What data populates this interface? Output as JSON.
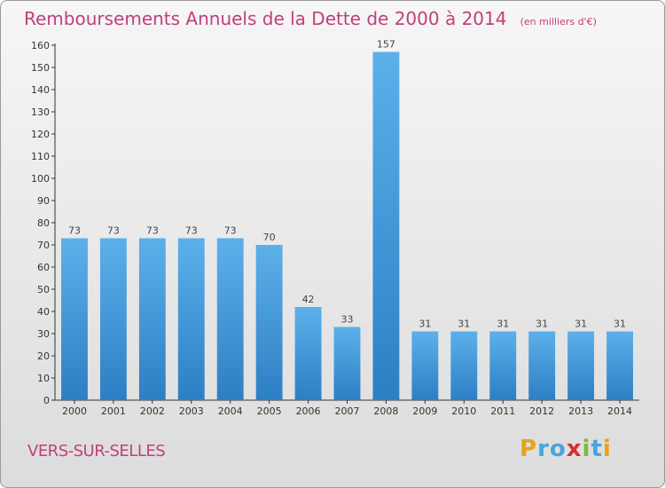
{
  "chart_data": {
    "type": "bar",
    "title": "Remboursements Annuels de la Dette de 2000 à 2014",
    "subtitle": "(en milliers d'€)",
    "categories": [
      "2000",
      "2001",
      "2002",
      "2003",
      "2004",
      "2005",
      "2006",
      "2007",
      "2008",
      "2009",
      "2010",
      "2011",
      "2012",
      "2013",
      "2014"
    ],
    "values": [
      73,
      73,
      73,
      73,
      73,
      70,
      42,
      33,
      157,
      31,
      31,
      31,
      31,
      31,
      31
    ],
    "data_labels": [
      "73",
      "73",
      "73",
      "73",
      "73",
      "70",
      "42",
      "33",
      "157",
      "31",
      "31",
      "31",
      "31",
      "31",
      "31"
    ],
    "ylim": [
      0,
      160
    ],
    "yticks": [
      0,
      10,
      20,
      30,
      40,
      50,
      60,
      70,
      80,
      90,
      100,
      110,
      120,
      130,
      140,
      150,
      160
    ],
    "grid": false,
    "bar_color": "#4fa3e2",
    "title_color": "#c0407a"
  },
  "footer": {
    "town": "VERS-SUR-SELLES",
    "brand": "Proxiti"
  }
}
